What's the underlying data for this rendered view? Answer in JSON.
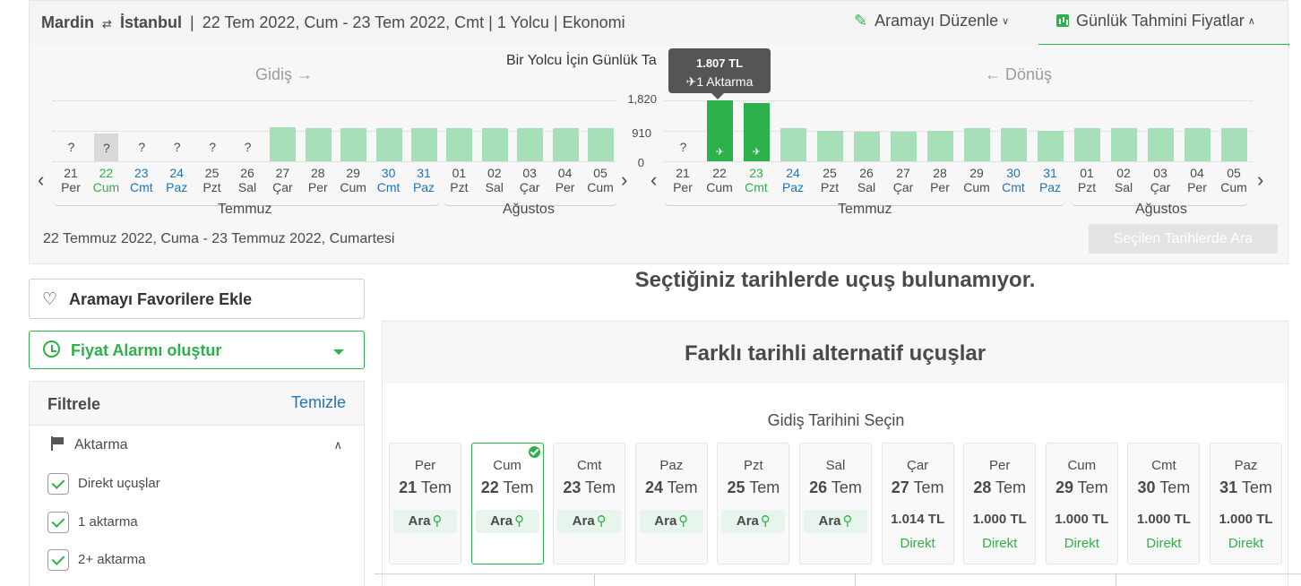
{
  "summary": {
    "origin": "Mardin",
    "destination": "İstanbul",
    "details": "22 Tem 2022, Cum - 23 Tem 2022, Cmt | 1 Yolcu | Ekonomi",
    "edit_search": "Aramayı Düzenle",
    "daily_prices": "Günlük Tahmini Fiyatlar"
  },
  "calendar": {
    "title": "Bir Yolcu İçin Günlük Ta",
    "outbound_label": "Gidiş →",
    "return_label": "← Dönüş",
    "y_ticks": [
      "1,820",
      "910",
      "0"
    ],
    "tooltip": {
      "price": "1.807 TL",
      "stops": "✈1 Aktarma"
    },
    "outbound": {
      "days": [
        {
          "num": "21",
          "wd": "Per",
          "style": ""
        },
        {
          "num": "22",
          "wd": "Cum",
          "style": "green"
        },
        {
          "num": "23",
          "wd": "Cmt",
          "style": "blue"
        },
        {
          "num": "24",
          "wd": "Paz",
          "style": "blue"
        },
        {
          "num": "25",
          "wd": "Pzt",
          "style": ""
        },
        {
          "num": "26",
          "wd": "Sal",
          "style": ""
        },
        {
          "num": "27",
          "wd": "Çar",
          "style": ""
        },
        {
          "num": "28",
          "wd": "Per",
          "style": ""
        },
        {
          "num": "29",
          "wd": "Cum",
          "style": ""
        },
        {
          "num": "30",
          "wd": "Cmt",
          "style": "blue"
        },
        {
          "num": "31",
          "wd": "Paz",
          "style": "blue"
        },
        {
          "num": "01",
          "wd": "Pzt",
          "style": ""
        },
        {
          "num": "02",
          "wd": "Sal",
          "style": ""
        },
        {
          "num": "03",
          "wd": "Çar",
          "style": ""
        },
        {
          "num": "04",
          "wd": "Per",
          "style": ""
        },
        {
          "num": "05",
          "wd": "Cum",
          "style": ""
        }
      ],
      "prices": [
        null,
        null,
        null,
        null,
        null,
        null,
        1014,
        1000,
        1000,
        1000,
        1000,
        1000,
        1000,
        1000,
        1000,
        1000
      ],
      "unknown_mark": "?",
      "months": [
        "Temmuz",
        "Ağustos"
      ]
    },
    "return": {
      "days": [
        {
          "num": "21",
          "wd": "Per",
          "style": ""
        },
        {
          "num": "22",
          "wd": "Cum",
          "style": ""
        },
        {
          "num": "23",
          "wd": "Cmt",
          "style": "green"
        },
        {
          "num": "24",
          "wd": "Paz",
          "style": "blue"
        },
        {
          "num": "25",
          "wd": "Pzt",
          "style": ""
        },
        {
          "num": "26",
          "wd": "Sal",
          "style": ""
        },
        {
          "num": "27",
          "wd": "Çar",
          "style": ""
        },
        {
          "num": "28",
          "wd": "Per",
          "style": ""
        },
        {
          "num": "29",
          "wd": "Cum",
          "style": ""
        },
        {
          "num": "30",
          "wd": "Cmt",
          "style": "blue"
        },
        {
          "num": "31",
          "wd": "Paz",
          "style": "blue"
        },
        {
          "num": "01",
          "wd": "Pzt",
          "style": ""
        },
        {
          "num": "02",
          "wd": "Sal",
          "style": ""
        },
        {
          "num": "03",
          "wd": "Çar",
          "style": ""
        },
        {
          "num": "04",
          "wd": "Per",
          "style": ""
        },
        {
          "num": "05",
          "wd": "Cum",
          "style": ""
        }
      ],
      "prices": [
        null,
        1807,
        1750,
        1000,
        920,
        880,
        880,
        900,
        1000,
        1000,
        920,
        1000,
        1000,
        1000,
        1000,
        1000
      ],
      "selected": [
        1,
        2
      ],
      "unknown_mark": "?",
      "months": [
        "Temmuz",
        "Ağustos"
      ]
    },
    "date_summary": "22 Temmuz 2022, Cuma -  23 Temmuz 2022, Cumartesi",
    "search_button": "Seçilen Tarihlerde Ara"
  },
  "sidebar": {
    "favorite": "Aramayı Favorilere Ekle",
    "price_alarm": "Fiyat Alarmı oluştur",
    "filters_title": "Filtrele",
    "filters_clear": "Temizle",
    "transfer_title": "Aktarma",
    "transfer_options": [
      "Direkt uçuşlar",
      "1 aktarma",
      "2+ aktarma"
    ]
  },
  "main": {
    "no_flights": "Seçtiğiniz tarihlerde uçuş bulunamıyor.",
    "alt_title": "Farklı tarihli alternatif uçuşlar",
    "pick_label": "Gidiş Tarihini Seçin",
    "search_label": "Ara",
    "direct_label": "Direkt",
    "cards": [
      {
        "wd": "Per",
        "num": "21",
        "mon": "Tem",
        "price": null
      },
      {
        "wd": "Cum",
        "num": "22",
        "mon": "Tem",
        "price": null,
        "active": true
      },
      {
        "wd": "Cmt",
        "num": "23",
        "mon": "Tem",
        "price": null
      },
      {
        "wd": "Paz",
        "num": "24",
        "mon": "Tem",
        "price": null
      },
      {
        "wd": "Pzt",
        "num": "25",
        "mon": "Tem",
        "price": null
      },
      {
        "wd": "Sal",
        "num": "26",
        "mon": "Tem",
        "price": null
      },
      {
        "wd": "Çar",
        "num": "27",
        "mon": "Tem",
        "price": "1.014 TL"
      },
      {
        "wd": "Per",
        "num": "28",
        "mon": "Tem",
        "price": "1.000 TL"
      },
      {
        "wd": "Cum",
        "num": "29",
        "mon": "Tem",
        "price": "1.000 TL"
      },
      {
        "wd": "Cmt",
        "num": "30",
        "mon": "Tem",
        "price": "1.000 TL"
      },
      {
        "wd": "Paz",
        "num": "31",
        "mon": "Tem",
        "price": "1.000 TL"
      }
    ]
  }
}
